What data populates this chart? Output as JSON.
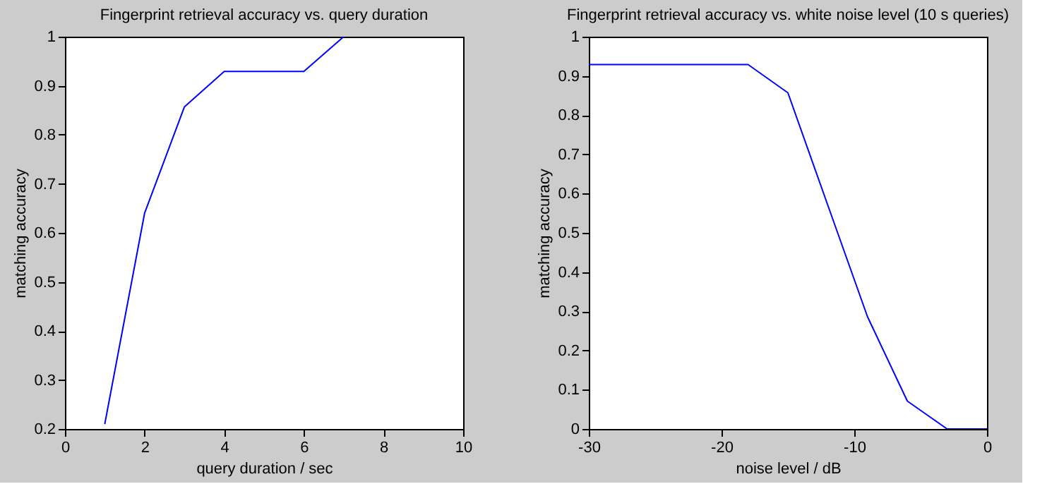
{
  "chart_data": [
    {
      "type": "line",
      "title": "Fingerprint retrieval accuracy vs. query duration",
      "xlabel": "query duration / sec",
      "ylabel": "matching accuracy",
      "x": [
        1,
        2,
        3,
        4,
        6,
        7
      ],
      "series": [
        {
          "color": "#0000ff",
          "values": [
            0.21,
            0.64,
            0.857,
            0.929,
            0.929,
            1.0
          ]
        }
      ],
      "xlim": [
        0,
        10
      ],
      "xticks": [
        0,
        2,
        4,
        6,
        8,
        10
      ],
      "ylim": [
        0.2,
        1
      ],
      "yticks": [
        0.2,
        0.3,
        0.4,
        0.5,
        0.6,
        0.7,
        0.8,
        0.9,
        1
      ],
      "grid": false
    },
    {
      "type": "line",
      "title": "Fingerprint retrieval accuracy vs. white noise level (10 s queries)",
      "xlabel": "noise level / dB",
      "ylabel": "matching accuracy",
      "x": [
        -30,
        -18,
        -15,
        -12,
        -9,
        -6,
        -3,
        0
      ],
      "series": [
        {
          "color": "#0000ff",
          "values": [
            0.929,
            0.929,
            0.857,
            0.571,
            0.286,
            0.071,
            0.0,
            0.0
          ]
        }
      ],
      "xlim": [
        -30,
        0
      ],
      "xticks": [
        -30,
        -20,
        -10,
        0
      ],
      "ylim": [
        0,
        1
      ],
      "yticks": [
        0,
        0.1,
        0.2,
        0.3,
        0.4,
        0.5,
        0.6,
        0.7,
        0.8,
        0.9,
        1
      ],
      "grid": false
    }
  ]
}
